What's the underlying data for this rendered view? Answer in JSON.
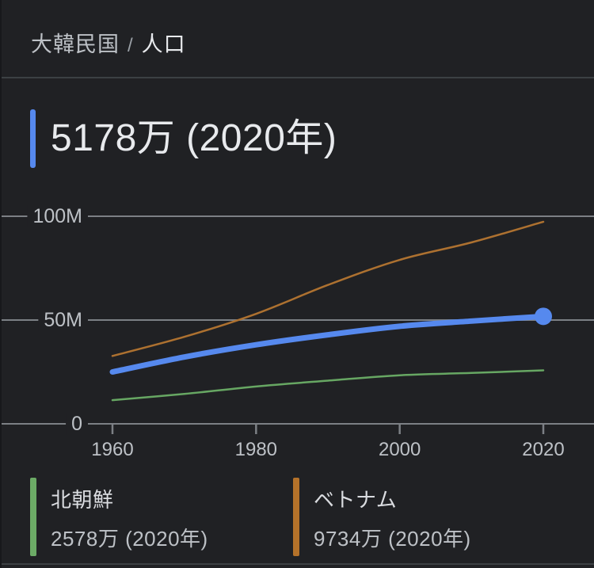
{
  "breadcrumb": {
    "country": "大韓民国",
    "separator": "/",
    "metric": "人口"
  },
  "headline": {
    "value": "5178万 (2020年)",
    "accent_color": "#5689ee"
  },
  "chart_data": {
    "type": "line",
    "title": "大韓民国 人口",
    "x": [
      1960,
      1970,
      1980,
      1990,
      2000,
      2010,
      2020
    ],
    "x_ticks": [
      1960,
      1980,
      2000,
      2020
    ],
    "x_tick_labels": [
      "1960",
      "1980",
      "2000",
      "2020"
    ],
    "y_ticks": [
      0,
      50,
      100
    ],
    "y_tick_labels": [
      "0",
      "50M",
      "100M"
    ],
    "ylim": [
      0,
      105
    ],
    "unit": "millions of people",
    "grid": true,
    "legend_position": "bottom",
    "series": [
      {
        "name": "ベトナム",
        "color": "#ad7130",
        "stroke_width": 2.5,
        "endpoint_dot": false,
        "values": [
          32.7,
          41.9,
          53.0,
          66.9,
          79.0,
          87.4,
          97.34
        ]
      },
      {
        "name": "北朝鮮",
        "color": "#67a763",
        "stroke_width": 2.5,
        "endpoint_dot": false,
        "values": [
          11.4,
          14.4,
          18.0,
          20.8,
          23.4,
          24.5,
          25.78
        ]
      },
      {
        "name": "大韓民国",
        "color": "#5689ee",
        "stroke_width": 7,
        "endpoint_dot": true,
        "values": [
          25.0,
          32.2,
          38.1,
          42.9,
          47.0,
          49.5,
          51.78
        ]
      }
    ],
    "axis_color": "#bdc1c6",
    "grid_color": "#7c8085"
  },
  "legend": [
    {
      "name": "北朝鮮",
      "value": "2578万 (2020年)",
      "color": "#6cab66"
    },
    {
      "name": "ベトナム",
      "value": "9734万 (2020年)",
      "color": "#b4722a"
    }
  ]
}
